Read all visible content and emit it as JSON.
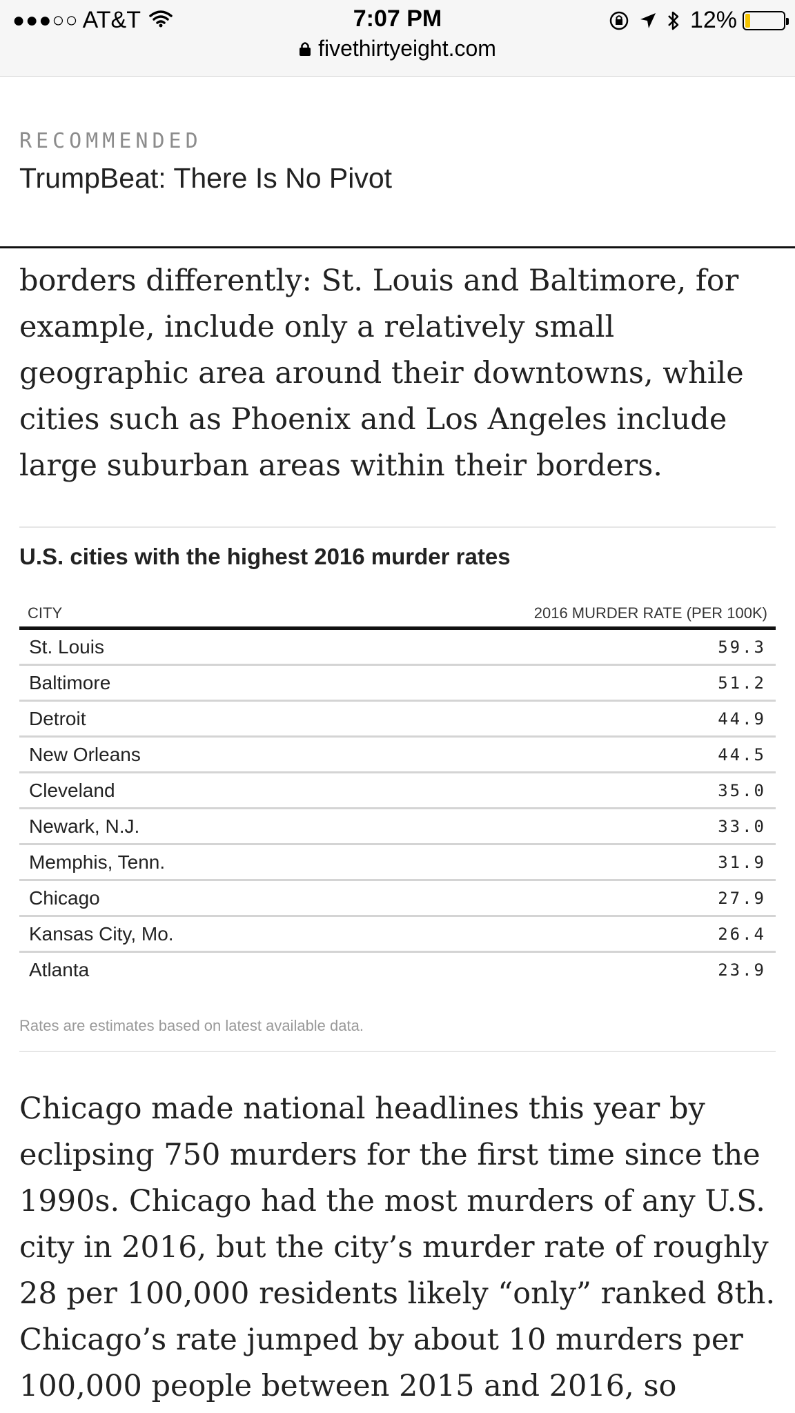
{
  "status_bar": {
    "signal": "●●●○○",
    "carrier": "AT&T",
    "time": "7:07 PM",
    "battery_percent": "12%",
    "battery_level": 0.12,
    "icons": [
      "wifi-icon",
      "rotation-lock-icon",
      "location-icon",
      "bluetooth-icon",
      "battery-icon"
    ]
  },
  "url_bar": {
    "domain": "fivethirtyeight.com",
    "icon": "lock-icon"
  },
  "recommended": {
    "kicker": "RECOMMENDED",
    "title": "TrumpBeat: There Is No Pivot"
  },
  "article": {
    "para_top": "borders differently: St. Louis and Baltimore, for example, include only a relatively small geographic area around their downtowns, while cities such as Phoenix and Los Angeles include large suburban areas within their borders.",
    "para_bottom": "Chicago made national headlines this year by eclipsing 750 murders for the first time since the 1990s. Chicago had the most murders of any U.S. city in 2016, but the city’s murder rate of roughly 28 per 100,000 residents likely “only” ranked 8th. Chicago’s rate jumped by about 10 murders per 100,000 people between 2015 and 2016, so"
  },
  "table": {
    "title": "U.S. cities with the highest 2016 murder rates",
    "col_city": "CITY",
    "col_rate": "2016 MURDER RATE (PER 100K)",
    "rows": [
      {
        "city": "St. Louis",
        "rate": "59.3"
      },
      {
        "city": "Baltimore",
        "rate": "51.2"
      },
      {
        "city": "Detroit",
        "rate": "44.9"
      },
      {
        "city": "New Orleans",
        "rate": "44.5"
      },
      {
        "city": "Cleveland",
        "rate": "35.0"
      },
      {
        "city": "Newark, N.J.",
        "rate": "33.0"
      },
      {
        "city": "Memphis, Tenn.",
        "rate": "31.9"
      },
      {
        "city": "Chicago",
        "rate": "27.9"
      },
      {
        "city": "Kansas City, Mo.",
        "rate": "26.4"
      },
      {
        "city": "Atlanta",
        "rate": "23.9"
      }
    ],
    "note": "Rates are estimates based on latest available data."
  }
}
